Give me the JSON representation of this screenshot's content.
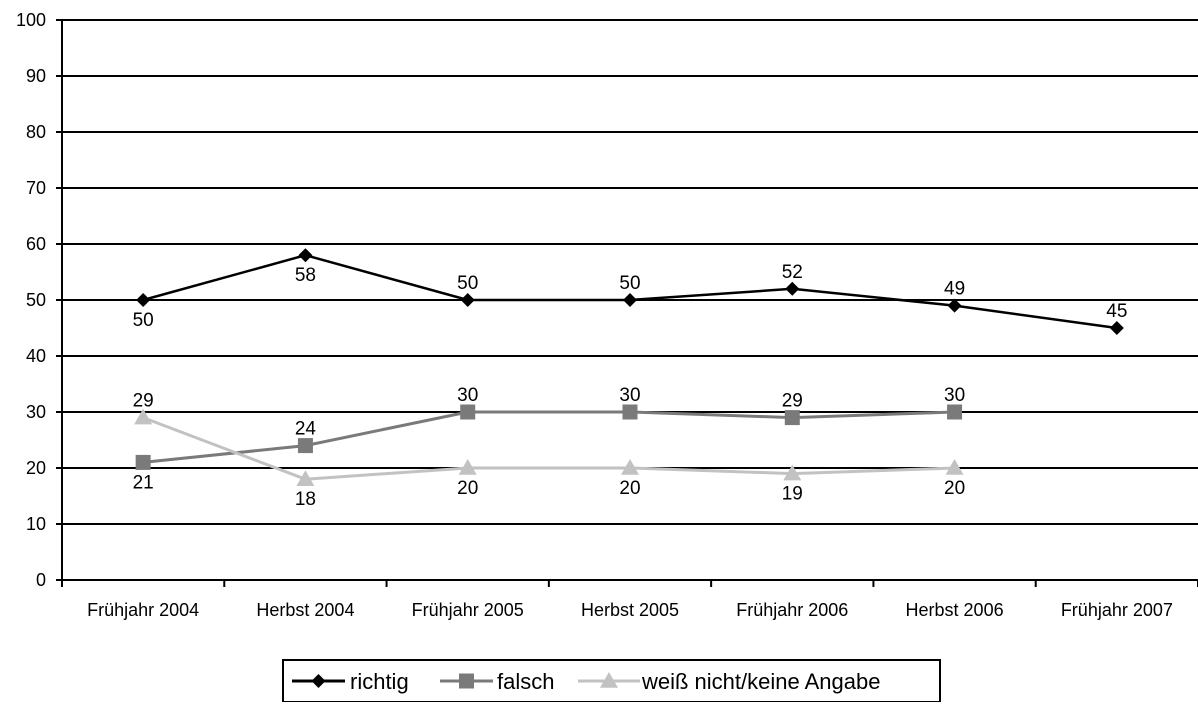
{
  "chart_data": {
    "type": "line",
    "title": "",
    "xlabel": "",
    "ylabel": "",
    "categories": [
      "Frühjahr 2004",
      "Herbst 2004",
      "Frühjahr 2005",
      "Herbst 2005",
      "Frühjahr 2006",
      "Herbst 2006",
      "Frühjahr 2007"
    ],
    "ylim": [
      0,
      100
    ],
    "yticks": [
      "0",
      "10",
      "20",
      "30",
      "40",
      "50",
      "60",
      "70",
      "80",
      "90",
      "100"
    ],
    "grid": true,
    "legend_position": "bottom",
    "series": [
      {
        "name": "richtig",
        "marker": "diamond",
        "color": "#000000",
        "values": [
          50,
          58,
          50,
          50,
          52,
          49,
          45
        ],
        "labels": [
          "50",
          "58",
          "50",
          "50",
          "52",
          "49",
          "45"
        ]
      },
      {
        "name": "falsch",
        "marker": "square",
        "color": "#7a7a7a",
        "values": [
          21,
          24,
          30,
          30,
          29,
          30,
          null
        ],
        "labels": [
          "21",
          "24",
          "30",
          "30",
          "29",
          "30",
          null
        ]
      },
      {
        "name": "weiß nicht/keine Angabe",
        "marker": "triangle",
        "color": "#c2c2c2",
        "values": [
          29,
          18,
          20,
          20,
          19,
          20,
          null
        ],
        "labels": [
          "29",
          "18",
          "20",
          "20",
          "19",
          "20",
          null
        ]
      }
    ]
  }
}
